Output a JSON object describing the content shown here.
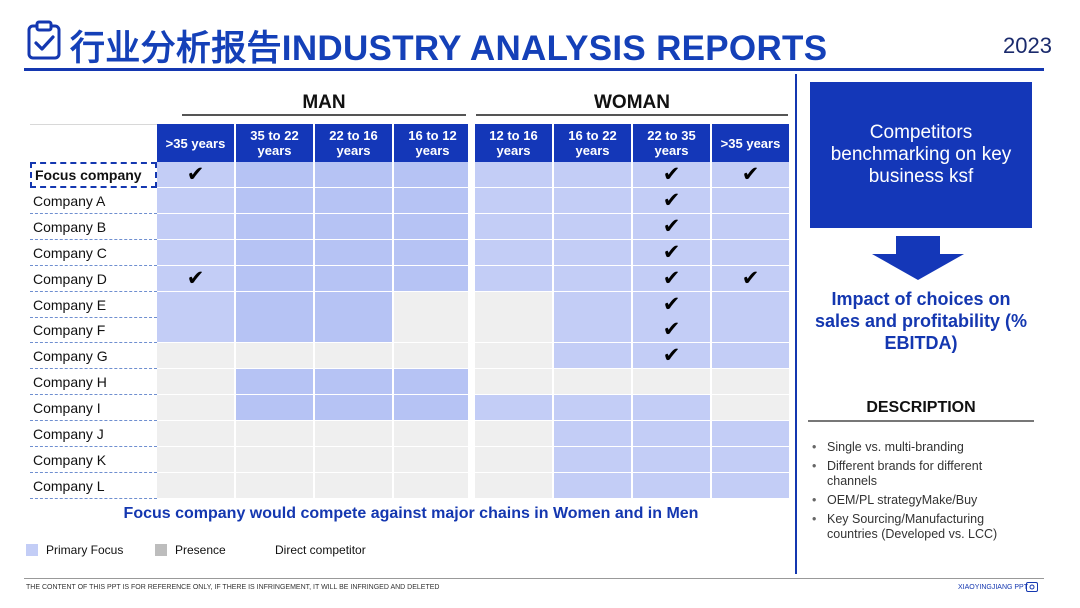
{
  "header": {
    "title": "行业分析报告INDUSTRY ANALYSIS REPORTS",
    "year": "2023",
    "icon": "clipboard-check-icon"
  },
  "groups": {
    "man": "MAN",
    "woman": "WOMAN"
  },
  "columns": [
    ">35 years",
    "35 to 22 years",
    "22 to 16 years",
    "16 to 12 years",
    "12 to 16 years",
    "16 to 22 years",
    "22 to 35 years",
    ">35 years"
  ],
  "rows": [
    {
      "label": "Focus company",
      "cells": [
        "p",
        "p",
        "p",
        "p",
        "p",
        "p",
        "p",
        "p"
      ],
      "checks": [
        0,
        6,
        7
      ]
    },
    {
      "label": "Company A",
      "cells": [
        "p",
        "p",
        "p",
        "p",
        "p",
        "p",
        "p",
        "p"
      ],
      "checks": [
        6
      ]
    },
    {
      "label": "Company B",
      "cells": [
        "p",
        "p",
        "p",
        "p",
        "p",
        "p",
        "p",
        "p"
      ],
      "checks": [
        6
      ]
    },
    {
      "label": "Company C",
      "cells": [
        "p",
        "p",
        "p",
        "p",
        "p",
        "p",
        "p",
        "p"
      ],
      "checks": [
        6
      ]
    },
    {
      "label": "Company D",
      "cells": [
        "p",
        "p",
        "p",
        "p",
        "p",
        "p",
        "p",
        "p"
      ],
      "checks": [
        0,
        6,
        7
      ]
    },
    {
      "label": "Company E",
      "cells": [
        "p",
        "p",
        "p",
        "g",
        "g",
        "p",
        "p",
        "p"
      ],
      "checks": [
        6
      ]
    },
    {
      "label": "Company F",
      "cells": [
        "p",
        "p",
        "p",
        "g",
        "g",
        "p",
        "p",
        "p"
      ],
      "checks": [
        6
      ]
    },
    {
      "label": "Company G",
      "cells": [
        "g",
        "g",
        "g",
        "g",
        "g",
        "p",
        "p",
        "p"
      ],
      "checks": [
        6
      ]
    },
    {
      "label": "Company H",
      "cells": [
        "g",
        "p",
        "p",
        "p",
        "g",
        "g",
        "g",
        "g"
      ],
      "checks": []
    },
    {
      "label": "Company I",
      "cells": [
        "g",
        "p",
        "p",
        "p",
        "p",
        "p",
        "p",
        "g"
      ],
      "checks": []
    },
    {
      "label": "Company J",
      "cells": [
        "g",
        "g",
        "g",
        "g",
        "g",
        "p",
        "p",
        "p"
      ],
      "checks": []
    },
    {
      "label": "Company K",
      "cells": [
        "g",
        "g",
        "g",
        "g",
        "g",
        "p",
        "p",
        "p"
      ],
      "checks": []
    },
    {
      "label": "Company L",
      "cells": [
        "g",
        "g",
        "g",
        "g",
        "g",
        "p",
        "p",
        "p"
      ],
      "checks": []
    }
  ],
  "check_glyph": "✔",
  "conclusion": "Focus company would compete against major chains in Women and in Men",
  "legend": {
    "primary": "Primary Focus",
    "presence": "Presence",
    "direct": "Direct competitor"
  },
  "side": {
    "box_text": "Competitors benchmarking on key business ksf",
    "impact": "Impact of choices on sales and profitability (% EBITDA)",
    "description_title": "DESCRIPTION",
    "description_items": [
      "Single vs. multi-branding",
      "Different brands for different channels",
      "OEM/PL strategyMake/Buy",
      "Key Sourcing/Manufacturing countries (Developed vs. LCC)"
    ]
  },
  "footer": {
    "note": "THE CONTENT OF THIS PPT IS FOR REFERENCE ONLY, IF THERE IS INFRINGEMENT, IT WILL BE INFRINGED AND DELETED",
    "brand": "XIAOYINGJIANG PPT"
  },
  "colors": {
    "brand_blue": "#1437b8",
    "primary_focus": "#c3cdf6",
    "presence": "#efefef"
  }
}
